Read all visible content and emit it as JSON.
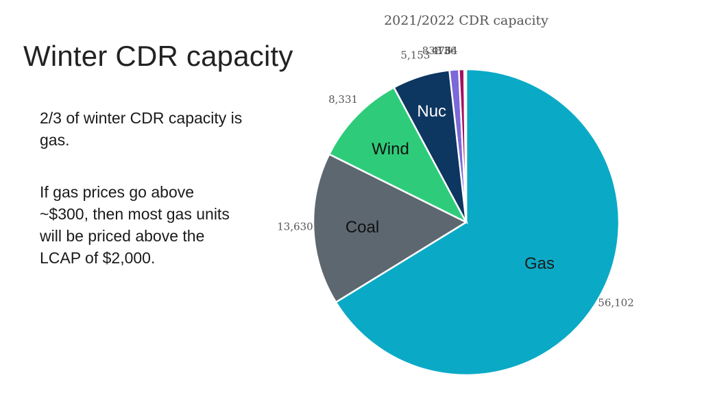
{
  "slide": {
    "title": "Winter CDR capacity",
    "bullets": [
      "2/3 of winter CDR capacity is gas.",
      "If gas prices go above ~$300, then most gas units will be priced above the LCAP of $2,000."
    ]
  },
  "chart_data": {
    "type": "pie",
    "title": "2021/2022 CDR capacity",
    "slices": [
      {
        "name": "Gas",
        "value": 56102,
        "label": "56,102",
        "color": "#0AAAC6",
        "text_color": "#1a1a1a"
      },
      {
        "name": "Coal",
        "value": 13630,
        "label": "13,630",
        "color": "#5D6770",
        "text_color": "#111111"
      },
      {
        "name": "Wind",
        "value": 8331,
        "label": "8,331",
        "color": "#2ECC7A",
        "text_color": "#111111"
      },
      {
        "name": "Nuc",
        "value": 5153,
        "label": "5,153",
        "color": "#0D3660",
        "text_color": "#ffffff"
      },
      {
        "name": "",
        "value": 838,
        "label": "838",
        "color": "#7B68D9",
        "text_color": "#111111"
      },
      {
        "name": "",
        "value": 476,
        "label": "476",
        "color": "#A3125E",
        "text_color": "#111111"
      },
      {
        "name": "",
        "value": 136,
        "label": "136",
        "color": "#3A3A3A",
        "text_color": "#111111"
      },
      {
        "name": "",
        "value": 34,
        "label": "34",
        "color": "#8EC6D6",
        "text_color": "#111111"
      }
    ],
    "start_angle": "12 o'clock",
    "direction": "clockwise",
    "legend": "none"
  }
}
